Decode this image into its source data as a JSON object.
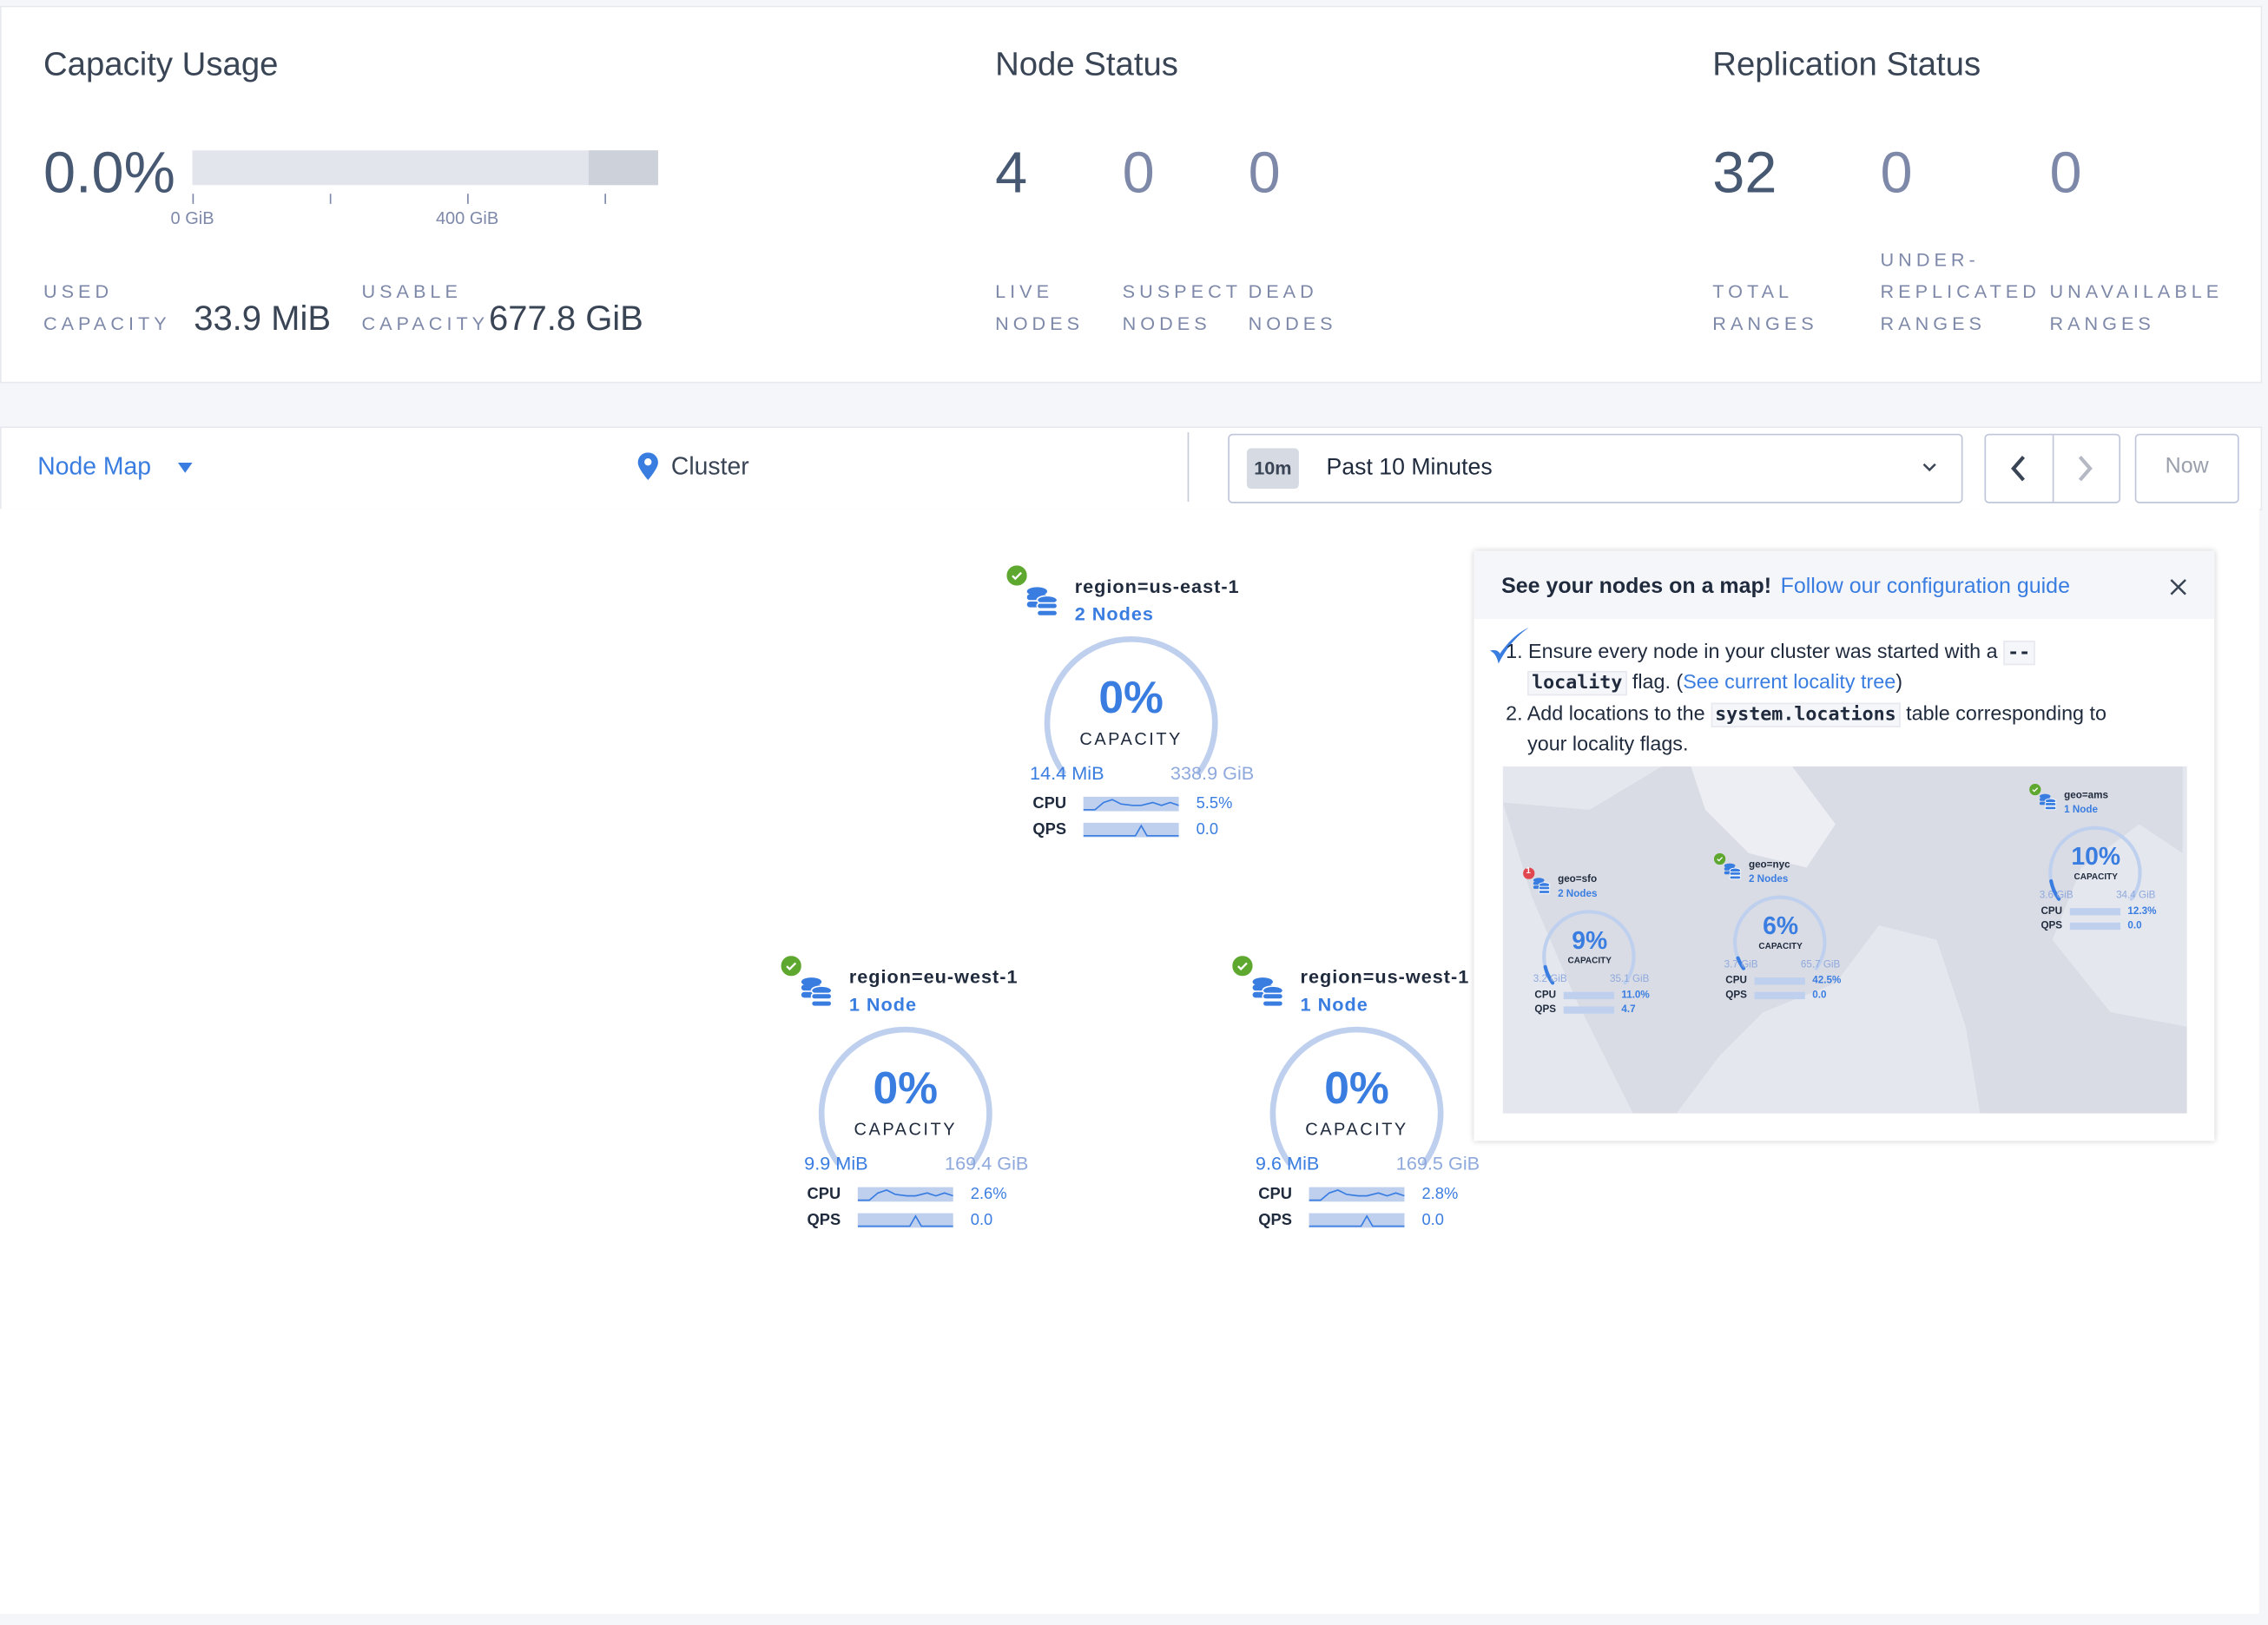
{
  "capacity": {
    "title": "Capacity Usage",
    "percent": "0.0%",
    "usage_fraction": 0.0,
    "axis_labels": [
      "0 GiB",
      "400 GiB"
    ],
    "used_label_1": "USED",
    "used_label_2": "CAPACITY",
    "used_value": "33.9 MiB",
    "usable_label_1": "USABLE",
    "usable_label_2": "CAPACITY",
    "usable_value": "677.8 GiB"
  },
  "node_status": {
    "title": "Node Status",
    "items": [
      {
        "value": "4",
        "l1": "LIVE",
        "l2": "NODES"
      },
      {
        "value": "0",
        "l1": "SUSPECT",
        "l2": "NODES"
      },
      {
        "value": "0",
        "l1": "DEAD",
        "l2": "NODES"
      }
    ]
  },
  "replication": {
    "title": "Replication Status",
    "items": [
      {
        "value": "32",
        "l0": "",
        "l1": "TOTAL",
        "l2": "RANGES"
      },
      {
        "value": "0",
        "l0": "UNDER-",
        "l1": "REPLICATED",
        "l2": "RANGES"
      },
      {
        "value": "0",
        "l0": "",
        "l1": "UNAVAILABLE",
        "l2": "RANGES"
      }
    ]
  },
  "toolbar": {
    "view_select": "Node Map",
    "breadcrumb": "Cluster",
    "time_badge": "10m",
    "time_range": "Past 10 Minutes",
    "now_label": "Now"
  },
  "nodes": [
    {
      "title": "region=us-east-1",
      "count": "2 Nodes",
      "percent": "0%",
      "capacity_label": "CAPACITY",
      "used": "14.4 MiB",
      "total": "338.9 GiB",
      "cpu_label": "CPU",
      "cpu": "5.5%",
      "qps_label": "QPS",
      "qps": "0.0",
      "status": "healthy"
    },
    {
      "title": "region=eu-west-1",
      "count": "1 Node",
      "percent": "0%",
      "capacity_label": "CAPACITY",
      "used": "9.9 MiB",
      "total": "169.4 GiB",
      "cpu_label": "CPU",
      "cpu": "2.6%",
      "qps_label": "QPS",
      "qps": "0.0",
      "status": "healthy"
    },
    {
      "title": "region=us-west-1",
      "count": "1 Node",
      "percent": "0%",
      "capacity_label": "CAPACITY",
      "used": "9.6 MiB",
      "total": "169.5 GiB",
      "cpu_label": "CPU",
      "cpu": "2.8%",
      "qps_label": "QPS",
      "qps": "0.0",
      "status": "healthy"
    }
  ],
  "popup": {
    "heading": "See your nodes on a map!",
    "link": "Follow our configuration guide",
    "step1_a": "Ensure every node in your cluster was started with a",
    "step1_code_a": "--",
    "step1_code_b": "locality",
    "step1_b": "flag. (",
    "step1_link": "See current locality tree",
    "step1_c": ")",
    "step2_a": "Add locations to the",
    "step2_code": "system.locations",
    "step2_b": "table corresponding to",
    "step2_c": "your locality flags.",
    "map_nodes": [
      {
        "title": "geo=sfo",
        "count": "2 Nodes",
        "percent": "9%",
        "capacity_label": "CAPACITY",
        "used": "3.2 GiB",
        "total": "35.1 GiB",
        "cpu_label": "CPU",
        "cpu": "11.0%",
        "qps_label": "QPS",
        "qps": "4.7",
        "status": "1"
      },
      {
        "title": "geo=nyc",
        "count": "2 Nodes",
        "percent": "6%",
        "capacity_label": "CAPACITY",
        "used": "3.7 GiB",
        "total": "65.7 GiB",
        "cpu_label": "CPU",
        "cpu": "42.5%",
        "qps_label": "QPS",
        "qps": "0.0",
        "status": "healthy"
      },
      {
        "title": "geo=ams",
        "count": "1 Node",
        "percent": "10%",
        "capacity_label": "CAPACITY",
        "used": "3.6 GiB",
        "total": "34.4 GiB",
        "cpu_label": "CPU",
        "cpu": "12.3%",
        "qps_label": "QPS",
        "qps": "0.0",
        "status": "healthy"
      }
    ]
  },
  "colors": {
    "accent": "#3a7de1",
    "healthy": "#5fa830",
    "alert": "#e0474f",
    "text": "#394455",
    "muted": "#7e89a9"
  }
}
